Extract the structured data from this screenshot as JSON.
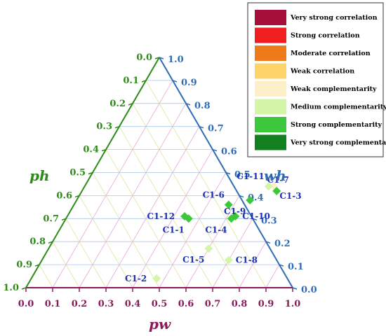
{
  "chart_data": {
    "type": "scatter",
    "subtype": "ternary",
    "axes": {
      "pw": {
        "label": "pw",
        "color": "#8b1a5a",
        "range": [
          0,
          1
        ],
        "ticks": [
          "0.0",
          "0.1",
          "0.2",
          "0.3",
          "0.4",
          "0.5",
          "0.6",
          "0.7",
          "0.8",
          "0.9",
          "1.0"
        ]
      },
      "ph": {
        "label": "ph",
        "color": "#2e8b1a",
        "range": [
          0,
          1
        ],
        "ticks": [
          "0.0",
          "0.1",
          "0.2",
          "0.3",
          "0.4",
          "0.5",
          "0.6",
          "0.7",
          "0.8",
          "0.9",
          "1.0"
        ]
      },
      "wh": {
        "label": "wh",
        "color": "#2e6db4",
        "range": [
          0,
          1
        ],
        "ticks": [
          "0.0",
          "0.1",
          "0.2",
          "0.3",
          "0.4",
          "0.5",
          "0.6",
          "0.7",
          "0.8",
          "0.9",
          "1.0"
        ]
      }
    },
    "grid": true,
    "legend": {
      "position": "top-right",
      "entries": [
        {
          "label": "Very strong correlation",
          "color": "#a50f3a"
        },
        {
          "label": "Strong correlation",
          "color": "#f01e1e"
        },
        {
          "label": "Moderate correlation",
          "color": "#ee7a1a"
        },
        {
          "label": "Weak correlation",
          "color": "#fdd36a"
        },
        {
          "label": "Weak complementarity",
          "color": "#fdf0c8"
        },
        {
          "label": "Medium complementarity",
          "color": "#d2f5a8"
        },
        {
          "label": "Strong complementarity",
          "color": "#3cc83c"
        },
        {
          "label": "Very strong complementary",
          "color": "#12801e"
        }
      ]
    },
    "points": [
      {
        "label": "C1-1",
        "pw": 0.46,
        "wh": 0.3,
        "category": "Strong complementarity",
        "label_side": "below-left"
      },
      {
        "label": "C1-2",
        "pw": 0.47,
        "wh": 0.04,
        "category": "Medium complementarity",
        "label_side": "left"
      },
      {
        "label": "C1-3",
        "pw": 0.71,
        "wh": 0.44,
        "category": "Weak complementarity",
        "label_side": "below-right"
      },
      {
        "label": "C1-4",
        "pw": 0.62,
        "wh": 0.3,
        "category": "Strong complementarity",
        "label_side": "below-left"
      },
      {
        "label": "C1-5",
        "pw": 0.6,
        "wh": 0.17,
        "category": "Medium complementarity",
        "label_side": "below-left"
      },
      {
        "label": "C1-6",
        "pw": 0.58,
        "wh": 0.36,
        "category": "Strong complementarity",
        "label_side": "above-left"
      },
      {
        "label": "C1-7",
        "pw": 0.73,
        "wh": 0.42,
        "category": "Strong complementarity",
        "label_side": "above-right"
      },
      {
        "label": "C1-8",
        "pw": 0.7,
        "wh": 0.12,
        "category": "Medium complementarity",
        "label_side": "right"
      },
      {
        "label": "C1-9",
        "pw": 0.65,
        "wh": 0.38,
        "category": "Strong complementarity",
        "label_side": "below-left"
      },
      {
        "label": "C1-10",
        "pw": 0.63,
        "wh": 0.31,
        "category": "Strong complementarity",
        "label_side": "right"
      },
      {
        "label": "C1-11",
        "pw": 0.69,
        "wh": 0.44,
        "category": "Medium complementarity",
        "label_side": "above-left"
      },
      {
        "label": "C1-12",
        "pw": 0.44,
        "wh": 0.31,
        "category": "Strong complementarity",
        "label_side": "left"
      }
    ]
  }
}
